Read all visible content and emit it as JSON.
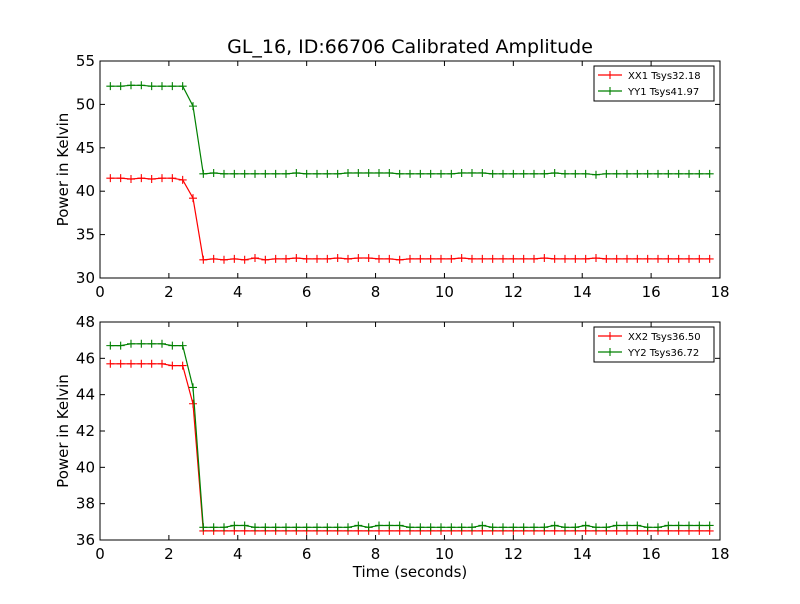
{
  "title": "GL_16, ID:66706 Calibrated Amplitude",
  "colors": {
    "xx": "#ff0000",
    "yy": "#008000",
    "axes": "#000000",
    "background": "#ffffff"
  },
  "chart_data": [
    {
      "type": "line",
      "title": "GL_16, ID:66706 Calibrated Amplitude",
      "xlabel": "",
      "ylabel": "Power in Kelvin",
      "xlim": [
        0,
        18
      ],
      "ylim": [
        30,
        55
      ],
      "xticks": [
        0,
        2,
        4,
        6,
        8,
        10,
        12,
        14,
        16,
        18
      ],
      "yticks": [
        30,
        35,
        40,
        45,
        50,
        55
      ],
      "grid": false,
      "legend_position": "top-right",
      "marker": "plus",
      "series": [
        {
          "name": "XX1 Tsys32.18",
          "color": "#ff0000",
          "x": [
            0.3,
            0.6,
            0.9,
            1.2,
            1.5,
            1.8,
            2.1,
            2.4,
            2.7,
            3.0,
            3.3,
            3.6,
            3.9,
            4.2,
            4.5,
            4.8,
            5.1,
            5.4,
            5.7,
            6.0,
            6.3,
            6.6,
            6.9,
            7.2,
            7.5,
            7.8,
            8.1,
            8.4,
            8.7,
            9.0,
            9.3,
            9.6,
            9.9,
            10.2,
            10.5,
            10.8,
            11.1,
            11.4,
            11.7,
            12.0,
            12.3,
            12.6,
            12.9,
            13.2,
            13.5,
            13.8,
            14.1,
            14.4,
            14.7,
            15.0,
            15.3,
            15.6,
            15.9,
            16.2,
            16.5,
            16.8,
            17.1,
            17.4,
            17.7
          ],
          "values": [
            41.5,
            41.5,
            41.4,
            41.5,
            41.4,
            41.5,
            41.5,
            41.3,
            39.2,
            32.1,
            32.2,
            32.1,
            32.2,
            32.1,
            32.3,
            32.1,
            32.2,
            32.2,
            32.3,
            32.2,
            32.2,
            32.2,
            32.3,
            32.2,
            32.3,
            32.3,
            32.2,
            32.2,
            32.1,
            32.2,
            32.2,
            32.2,
            32.2,
            32.2,
            32.3,
            32.2,
            32.2,
            32.2,
            32.2,
            32.2,
            32.2,
            32.2,
            32.3,
            32.2,
            32.2,
            32.2,
            32.2,
            32.3,
            32.2,
            32.2,
            32.2,
            32.2,
            32.2,
            32.2,
            32.2,
            32.2,
            32.2,
            32.2,
            32.2
          ]
        },
        {
          "name": "YY1 Tsys41.97",
          "color": "#008000",
          "x": [
            0.3,
            0.6,
            0.9,
            1.2,
            1.5,
            1.8,
            2.1,
            2.4,
            2.7,
            3.0,
            3.3,
            3.6,
            3.9,
            4.2,
            4.5,
            4.8,
            5.1,
            5.4,
            5.7,
            6.0,
            6.3,
            6.6,
            6.9,
            7.2,
            7.5,
            7.8,
            8.1,
            8.4,
            8.7,
            9.0,
            9.3,
            9.6,
            9.9,
            10.2,
            10.5,
            10.8,
            11.1,
            11.4,
            11.7,
            12.0,
            12.3,
            12.6,
            12.9,
            13.2,
            13.5,
            13.8,
            14.1,
            14.4,
            14.7,
            15.0,
            15.3,
            15.6,
            15.9,
            16.2,
            16.5,
            16.8,
            17.1,
            17.4,
            17.7
          ],
          "values": [
            52.1,
            52.1,
            52.2,
            52.2,
            52.1,
            52.1,
            52.1,
            52.1,
            49.8,
            42.0,
            42.1,
            42.0,
            42.0,
            42.0,
            42.0,
            42.0,
            42.0,
            42.0,
            42.1,
            42.0,
            42.0,
            42.0,
            42.0,
            42.1,
            42.1,
            42.1,
            42.1,
            42.1,
            42.0,
            42.0,
            42.0,
            42.0,
            42.0,
            42.0,
            42.1,
            42.1,
            42.1,
            42.0,
            42.0,
            42.0,
            42.0,
            42.0,
            42.0,
            42.1,
            42.0,
            42.0,
            42.0,
            41.9,
            42.0,
            42.0,
            42.0,
            42.0,
            42.0,
            42.0,
            42.0,
            42.0,
            42.0,
            42.0,
            42.0
          ]
        }
      ]
    },
    {
      "type": "line",
      "title": "",
      "xlabel": "Time (seconds)",
      "ylabel": "Power in Kelvin",
      "xlim": [
        0,
        18
      ],
      "ylim": [
        36,
        48
      ],
      "xticks": [
        0,
        2,
        4,
        6,
        8,
        10,
        12,
        14,
        16,
        18
      ],
      "yticks": [
        36,
        38,
        40,
        42,
        44,
        46,
        48
      ],
      "grid": false,
      "legend_position": "top-right",
      "marker": "plus",
      "series": [
        {
          "name": "XX2 Tsys36.50",
          "color": "#ff0000",
          "x": [
            0.3,
            0.6,
            0.9,
            1.2,
            1.5,
            1.8,
            2.1,
            2.4,
            2.7,
            3.0,
            3.3,
            3.6,
            3.9,
            4.2,
            4.5,
            4.8,
            5.1,
            5.4,
            5.7,
            6.0,
            6.3,
            6.6,
            6.9,
            7.2,
            7.5,
            7.8,
            8.1,
            8.4,
            8.7,
            9.0,
            9.3,
            9.6,
            9.9,
            10.2,
            10.5,
            10.8,
            11.1,
            11.4,
            11.7,
            12.0,
            12.3,
            12.6,
            12.9,
            13.2,
            13.5,
            13.8,
            14.1,
            14.4,
            14.7,
            15.0,
            15.3,
            15.6,
            15.9,
            16.2,
            16.5,
            16.8,
            17.1,
            17.4,
            17.7
          ],
          "values": [
            45.7,
            45.7,
            45.7,
            45.7,
            45.7,
            45.7,
            45.6,
            45.6,
            43.5,
            36.5,
            36.5,
            36.5,
            36.5,
            36.5,
            36.5,
            36.5,
            36.5,
            36.5,
            36.5,
            36.5,
            36.5,
            36.5,
            36.5,
            36.5,
            36.5,
            36.5,
            36.5,
            36.5,
            36.5,
            36.5,
            36.5,
            36.5,
            36.5,
            36.5,
            36.5,
            36.5,
            36.5,
            36.5,
            36.5,
            36.5,
            36.5,
            36.5,
            36.5,
            36.5,
            36.5,
            36.5,
            36.5,
            36.5,
            36.5,
            36.5,
            36.5,
            36.5,
            36.5,
            36.5,
            36.5,
            36.5,
            36.5,
            36.5,
            36.5
          ]
        },
        {
          "name": "YY2 Tsys36.72",
          "color": "#008000",
          "x": [
            0.3,
            0.6,
            0.9,
            1.2,
            1.5,
            1.8,
            2.1,
            2.4,
            2.7,
            3.0,
            3.3,
            3.6,
            3.9,
            4.2,
            4.5,
            4.8,
            5.1,
            5.4,
            5.7,
            6.0,
            6.3,
            6.6,
            6.9,
            7.2,
            7.5,
            7.8,
            8.1,
            8.4,
            8.7,
            9.0,
            9.3,
            9.6,
            9.9,
            10.2,
            10.5,
            10.8,
            11.1,
            11.4,
            11.7,
            12.0,
            12.3,
            12.6,
            12.9,
            13.2,
            13.5,
            13.8,
            14.1,
            14.4,
            14.7,
            15.0,
            15.3,
            15.6,
            15.9,
            16.2,
            16.5,
            16.8,
            17.1,
            17.4,
            17.7
          ],
          "values": [
            46.7,
            46.7,
            46.8,
            46.8,
            46.8,
            46.8,
            46.7,
            46.7,
            44.4,
            36.7,
            36.7,
            36.7,
            36.8,
            36.8,
            36.7,
            36.7,
            36.7,
            36.7,
            36.7,
            36.7,
            36.7,
            36.7,
            36.7,
            36.7,
            36.8,
            36.7,
            36.8,
            36.8,
            36.8,
            36.7,
            36.7,
            36.7,
            36.7,
            36.7,
            36.7,
            36.7,
            36.8,
            36.7,
            36.7,
            36.7,
            36.7,
            36.7,
            36.7,
            36.8,
            36.7,
            36.7,
            36.8,
            36.7,
            36.7,
            36.8,
            36.8,
            36.8,
            36.7,
            36.7,
            36.8,
            36.8,
            36.8,
            36.8,
            36.8
          ]
        }
      ]
    }
  ]
}
